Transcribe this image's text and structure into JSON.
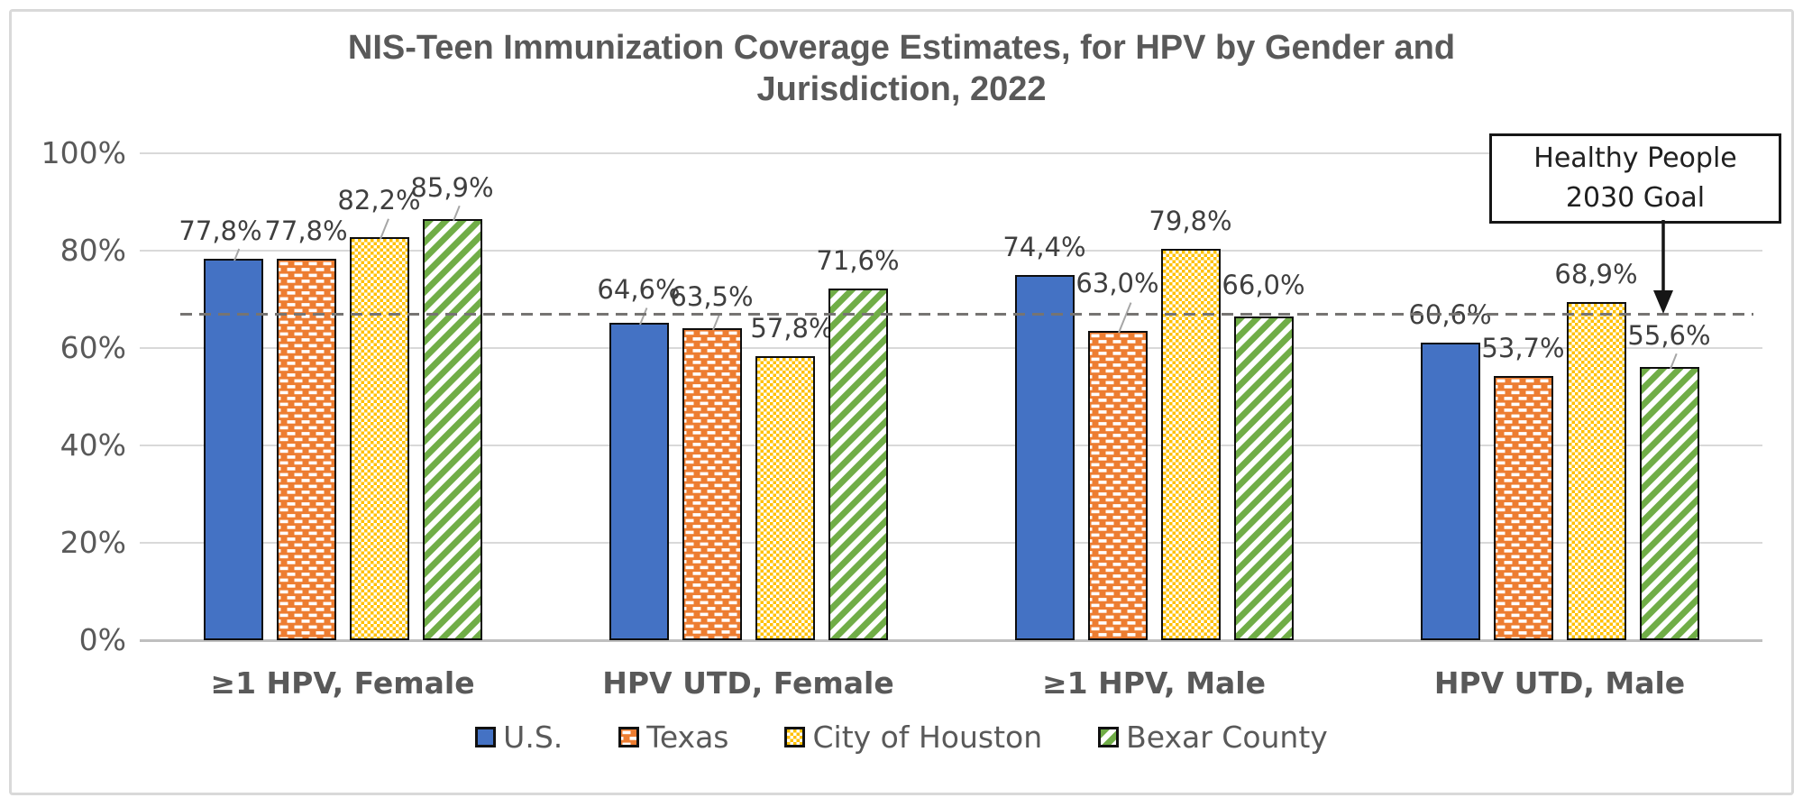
{
  "title": "NIS-Teen Immunization Coverage Estimates, for HPV by Gender and Jurisdiction, 2022",
  "annotation": {
    "line1": "Healthy People",
    "line2": "2030 Goal"
  },
  "chart_data": {
    "type": "bar",
    "title": "NIS-Teen Immunization Coverage Estimates, for HPV by Gender and Jurisdiction, 2022",
    "categories": [
      "≥1 HPV, Female",
      "HPV UTD, Female",
      "≥1 HPV, Male",
      "HPV UTD, Male"
    ],
    "series": [
      {
        "name": "U.S.",
        "color": "#4472C4",
        "pattern": "solid",
        "values": [
          77.8,
          64.6,
          74.4,
          60.6
        ],
        "labels": [
          "77,8%",
          "64,6%",
          "74,4%",
          "60,6%"
        ]
      },
      {
        "name": "Texas",
        "color": "#ED7D31",
        "pattern": "dashed-brick",
        "values": [
          77.8,
          63.5,
          63.0,
          53.7
        ],
        "labels": [
          "77,8%",
          "63,5%",
          "63,0%",
          "53,7%"
        ]
      },
      {
        "name": "City of Houston",
        "color": "#FFC000",
        "pattern": "checker",
        "values": [
          82.2,
          57.8,
          79.8,
          68.9
        ],
        "labels": [
          "82,2%",
          "57,8%",
          "79,8%",
          "68,9%"
        ]
      },
      {
        "name": "Bexar County",
        "color": "#70AD47",
        "pattern": "diagonal-stripes",
        "values": [
          85.9,
          71.6,
          66.0,
          55.6
        ],
        "labels": [
          "85,9%",
          "71,6%",
          "66,0%",
          "55,6%"
        ]
      }
    ],
    "y_axis": {
      "ticks": [
        "0%",
        "20%",
        "40%",
        "60%",
        "80%",
        "100%"
      ],
      "min": 0,
      "max": 100,
      "grid": true
    },
    "goal_line": {
      "value": 67,
      "style": "dashed",
      "label": "Healthy People 2030 Goal"
    },
    "legend_position": "bottom",
    "bar_outline_color": "#0d0d0d",
    "gridline_color": "#D9D9D9",
    "text_color": "#595959"
  }
}
